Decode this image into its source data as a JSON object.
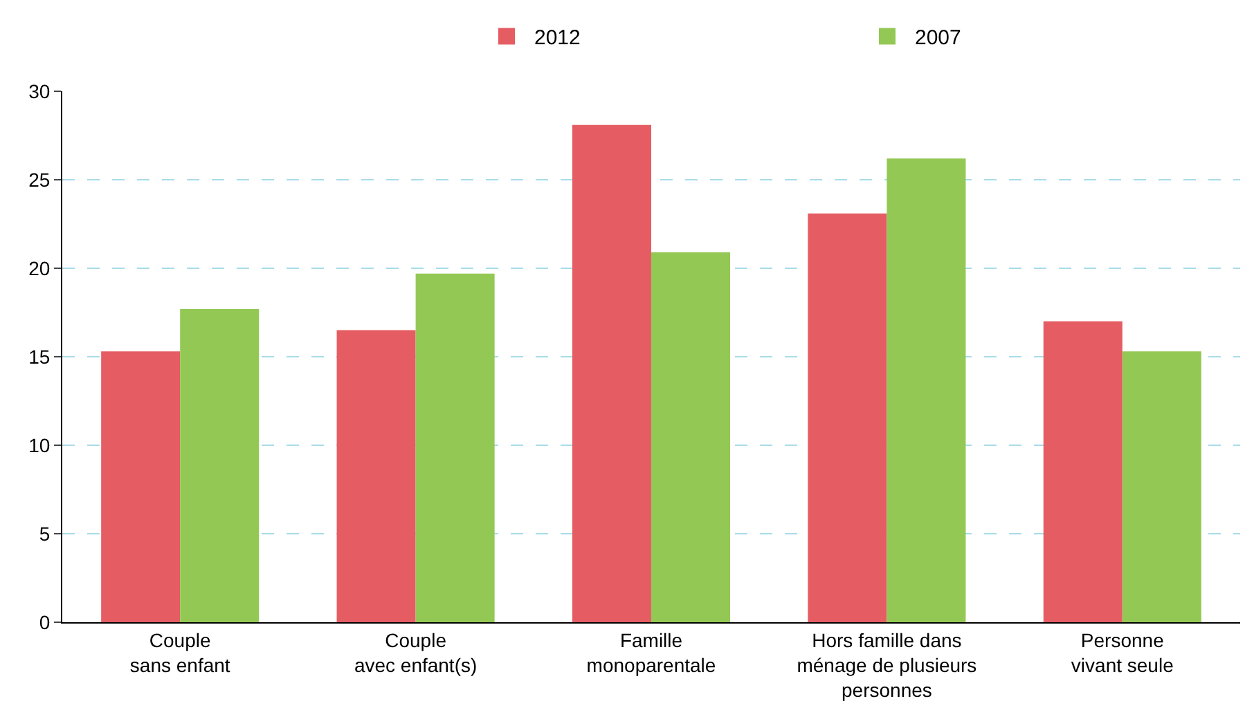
{
  "chart_data": {
    "type": "bar",
    "categories": [
      "Couple\nsans enfant",
      "Couple\navec enfant(s)",
      "Famille\nmonoparentale",
      "Hors famille dans\nménage de plusieurs\npersonnes",
      "Personne\nvivant seule"
    ],
    "series": [
      {
        "name": "2012",
        "color": "#e55d63",
        "values": [
          15.3,
          16.5,
          28.1,
          23.1,
          17.0
        ]
      },
      {
        "name": "2007",
        "color": "#93c855",
        "values": [
          17.7,
          19.7,
          20.9,
          26.2,
          15.3
        ]
      }
    ],
    "ylim": [
      0,
      30
    ],
    "yticks": [
      0,
      5,
      10,
      15,
      20,
      25,
      30
    ],
    "grid": "y",
    "legend": "top right"
  }
}
